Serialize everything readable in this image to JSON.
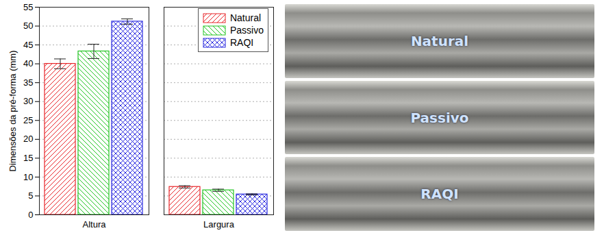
{
  "chart_data": {
    "type": "bar",
    "ylabel": "Dimensões da pré-forma (mm)",
    "categories": [
      "Altura",
      "Largura"
    ],
    "series": [
      {
        "name": "Natural",
        "color": "#e8262a",
        "values": [
          40.0,
          7.4
        ],
        "errors": [
          1.3,
          0.3
        ]
      },
      {
        "name": "Passivo",
        "color": "#22c422",
        "values": [
          43.3,
          6.5
        ],
        "errors": [
          1.9,
          0.3
        ]
      },
      {
        "name": "RAQI",
        "color": "#2a2ae0",
        "values": [
          51.2,
          5.4
        ],
        "errors": [
          0.7,
          0.15
        ]
      }
    ],
    "ylim": [
      0,
      55
    ],
    "yticks": [
      0,
      5,
      10,
      15,
      20,
      25,
      30,
      35,
      40,
      45,
      50,
      55
    ],
    "grid": true,
    "legend": "upper right"
  },
  "photos": [
    "Natural",
    "Passivo",
    "RAQI"
  ]
}
